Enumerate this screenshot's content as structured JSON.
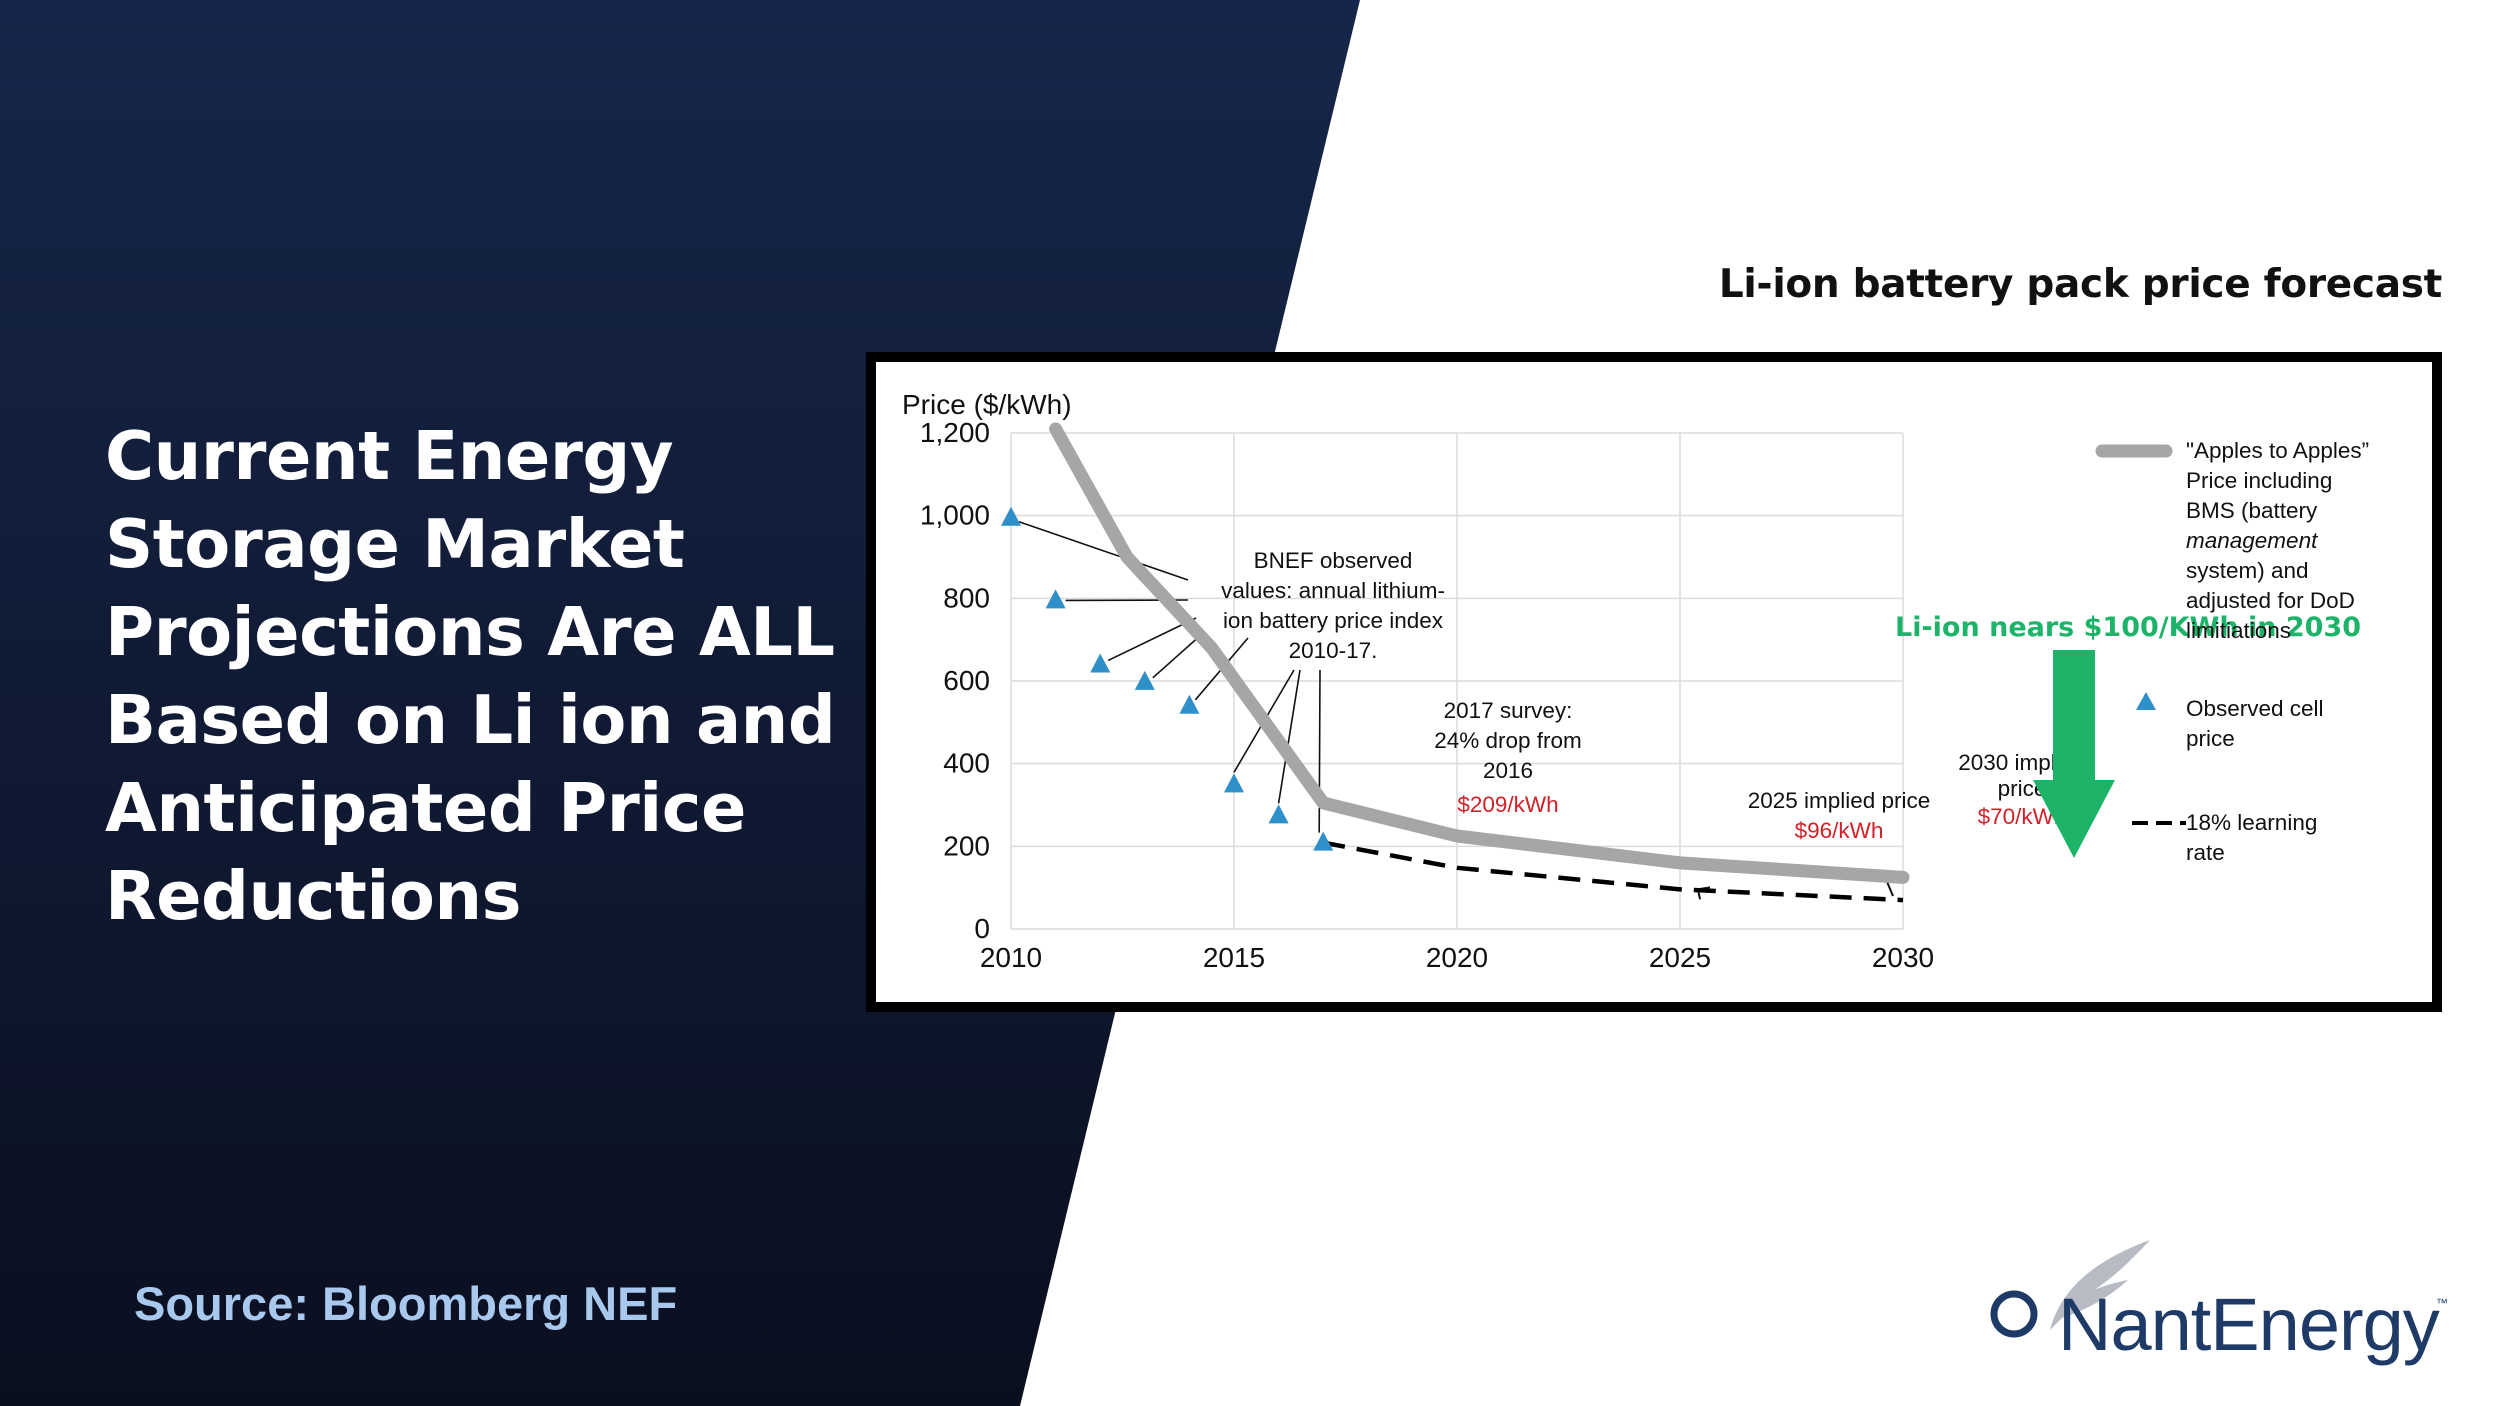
{
  "slide": {
    "headline_lines": [
      "Current Energy",
      "Storage Market",
      "Projections Are ALL",
      "Based on Li ion and",
      "Anticipated Price",
      "Reductions"
    ],
    "source": "Source: Bloomberg NEF",
    "logo_text": "NantEnergy",
    "logo_tm": "™",
    "colors": {
      "navy_top": "#16264a",
      "navy_bottom": "#0a0f1f",
      "source_blue": "#a9c8ee",
      "logo_navy": "#1e3a66"
    }
  },
  "chart_data": {
    "type": "line",
    "title": "Li-ion battery pack price forecast",
    "ylabel": "Price ($/kWh)",
    "xlabel": "",
    "xlim": [
      2010,
      2030
    ],
    "ylim": [
      0,
      1200
    ],
    "x_ticks": [
      2010,
      2015,
      2020,
      2025,
      2030
    ],
    "y_ticks": [
      0,
      200,
      400,
      600,
      800,
      1000,
      1200
    ],
    "y_tick_labels": [
      "0",
      "200",
      "400",
      "600",
      "800",
      "1,000",
      "1,200"
    ],
    "grid": true,
    "legend_position": "right",
    "series": [
      {
        "name": "\"Apples to Apples\" Price including BMS (battery management system) and adjusted for DoD limitiations",
        "style": "thick-gray-line",
        "color": "#a6a6a6",
        "x": [
          2011,
          2012.6,
          2014.5,
          2017,
          2020,
          2025,
          2030
        ],
        "y": [
          1210,
          900,
          680,
          305,
          225,
          160,
          125
        ]
      },
      {
        "name": "Observed cell price",
        "style": "triangle-markers",
        "color": "#2e8fc9",
        "x": [
          2010,
          2011,
          2012,
          2013,
          2014,
          2015,
          2016,
          2017
        ],
        "y": [
          995,
          795,
          640,
          598,
          540,
          350,
          275,
          209
        ]
      },
      {
        "name": "18% learning rate",
        "style": "dashed-black-line",
        "color": "#000000",
        "x": [
          2017,
          2020,
          2025,
          2030
        ],
        "y": [
          209,
          148,
          96,
          70
        ]
      }
    ],
    "legend": [
      {
        "lines": [
          "\"Apples to Apples”",
          "Price including",
          "BMS (battery",
          "management",
          "system) and",
          "adjusted for DoD",
          "limitiations"
        ]
      },
      {
        "lines": [
          "Observed cell",
          "price"
        ]
      },
      {
        "lines": [
          "18% learning",
          "rate"
        ]
      }
    ],
    "annotations": {
      "bnef": [
        "BNEF observed",
        "values: annual lithium-",
        "ion battery price index",
        "2010-17."
      ],
      "survey": [
        "2017 survey:",
        "24% drop from",
        "2016"
      ],
      "survey_price": "$209/kWh",
      "implied_2025": "2025 implied price",
      "implied_2025_price": "$96/kWh",
      "implied_2030": [
        "2030 implied",
        "price"
      ],
      "implied_2030_price": "$70/kWh",
      "callout": "Li-ion nears $100/KWh in 2030",
      "callout_color": "#1db46a",
      "price_label_color": "#d42027"
    }
  }
}
